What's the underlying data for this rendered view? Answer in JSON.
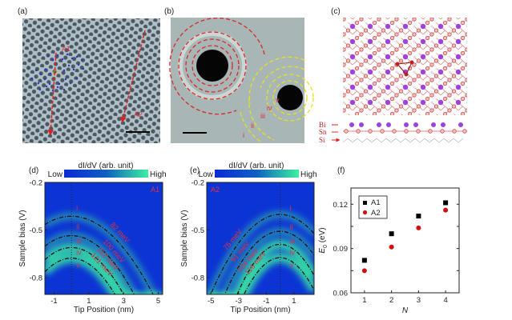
{
  "panels": {
    "a": {
      "label": "(a)",
      "markers": [
        "A1",
        "A2"
      ]
    },
    "b": {
      "label": "(b)",
      "rings": [
        "i",
        "ii",
        "iii",
        "iv",
        "v"
      ]
    },
    "c": {
      "label": "(c)",
      "layers": [
        "Bi",
        "Sn",
        "Si"
      ]
    },
    "d": {
      "label": "(d)"
    },
    "e": {
      "label": "(e)"
    },
    "f": {
      "label": "(f)"
    }
  },
  "colorbar": {
    "title": "dI/dV (arb. unit)",
    "low": "Low",
    "high": "High"
  },
  "colors": {
    "map_low": "#0a2ad8",
    "map_high": "#3cf0a0",
    "a1": "#000000",
    "a2": "#d01010",
    "annot": "#e03040"
  },
  "chart_data": [
    {
      "type": "heatmap",
      "panel": "d",
      "tag": "A1",
      "xlabel": "Tip Position (nm)",
      "ylabel": "Sample bias (V)",
      "xlim": [
        -1.53,
        5.25
      ],
      "ylim": [
        -0.905,
        -0.2
      ],
      "xticks": [
        -1,
        1,
        3,
        5
      ],
      "yticks": [
        -0.2,
        -0.5,
        -0.8
      ],
      "marker_x": 0,
      "levels": [
        "i",
        "ii",
        "iii",
        "iv",
        "v"
      ],
      "curves": [
        {
          "label": "82 meV",
          "peak_bias": -0.413,
          "curvature": 0.0223
        },
        {
          "label": "100 meV",
          "peak_bias": -0.535,
          "curvature": 0.0285
        },
        {
          "label": "112 meV",
          "peak_bias": -0.61,
          "curvature": 0.0328
        },
        {
          "label": "121 meV",
          "peak_bias": -0.677,
          "curvature": 0.0365
        }
      ]
    },
    {
      "type": "heatmap",
      "panel": "e",
      "tag": "A2",
      "xlabel": "Tip Position (nm)",
      "ylabel": "Sample bias (V)",
      "xlim": [
        -5.3,
        2.45
      ],
      "ylim": [
        -0.905,
        -0.2
      ],
      "xticks": [
        -5,
        -3,
        -1,
        1
      ],
      "yticks": [
        -0.2,
        -0.5,
        -0.8
      ],
      "marker_x": 0,
      "levels": [
        "i",
        "ii",
        "iii",
        "iv",
        "v"
      ],
      "curves": [
        {
          "label": "75 meV",
          "peak_bias": -0.402,
          "curvature": 0.02
        },
        {
          "label": "91 meV",
          "peak_bias": -0.508,
          "curvature": 0.0248
        },
        {
          "label": "104 meV",
          "peak_bias": -0.59,
          "curvature": 0.0328
        },
        {
          "label": "116 meV",
          "peak_bias": -0.674,
          "curvature": 0.034
        }
      ]
    },
    {
      "type": "scatter",
      "panel": "f",
      "xlabel": "N",
      "ylabel": "E0 (eV)",
      "ylabel_main": "E",
      "ylabel_sub": "0",
      "ylabel_unit": " (eV)",
      "xlim": [
        0.5,
        4.5
      ],
      "ylim": [
        0.06,
        0.131
      ],
      "xticks": [
        1,
        2,
        3,
        4
      ],
      "yticks": [
        0.06,
        0.09,
        0.12
      ],
      "ytick_labels": [
        "0.06",
        "0.09",
        "0.12"
      ],
      "legend": "top-left",
      "series": [
        {
          "name": "A1",
          "marker": "square",
          "x": [
            1,
            2,
            3,
            4
          ],
          "y": [
            0.082,
            0.1,
            0.112,
            0.121
          ]
        },
        {
          "name": "A2",
          "marker": "circle",
          "x": [
            1,
            2,
            3,
            4
          ],
          "y": [
            0.075,
            0.091,
            0.104,
            0.116
          ]
        }
      ]
    }
  ]
}
